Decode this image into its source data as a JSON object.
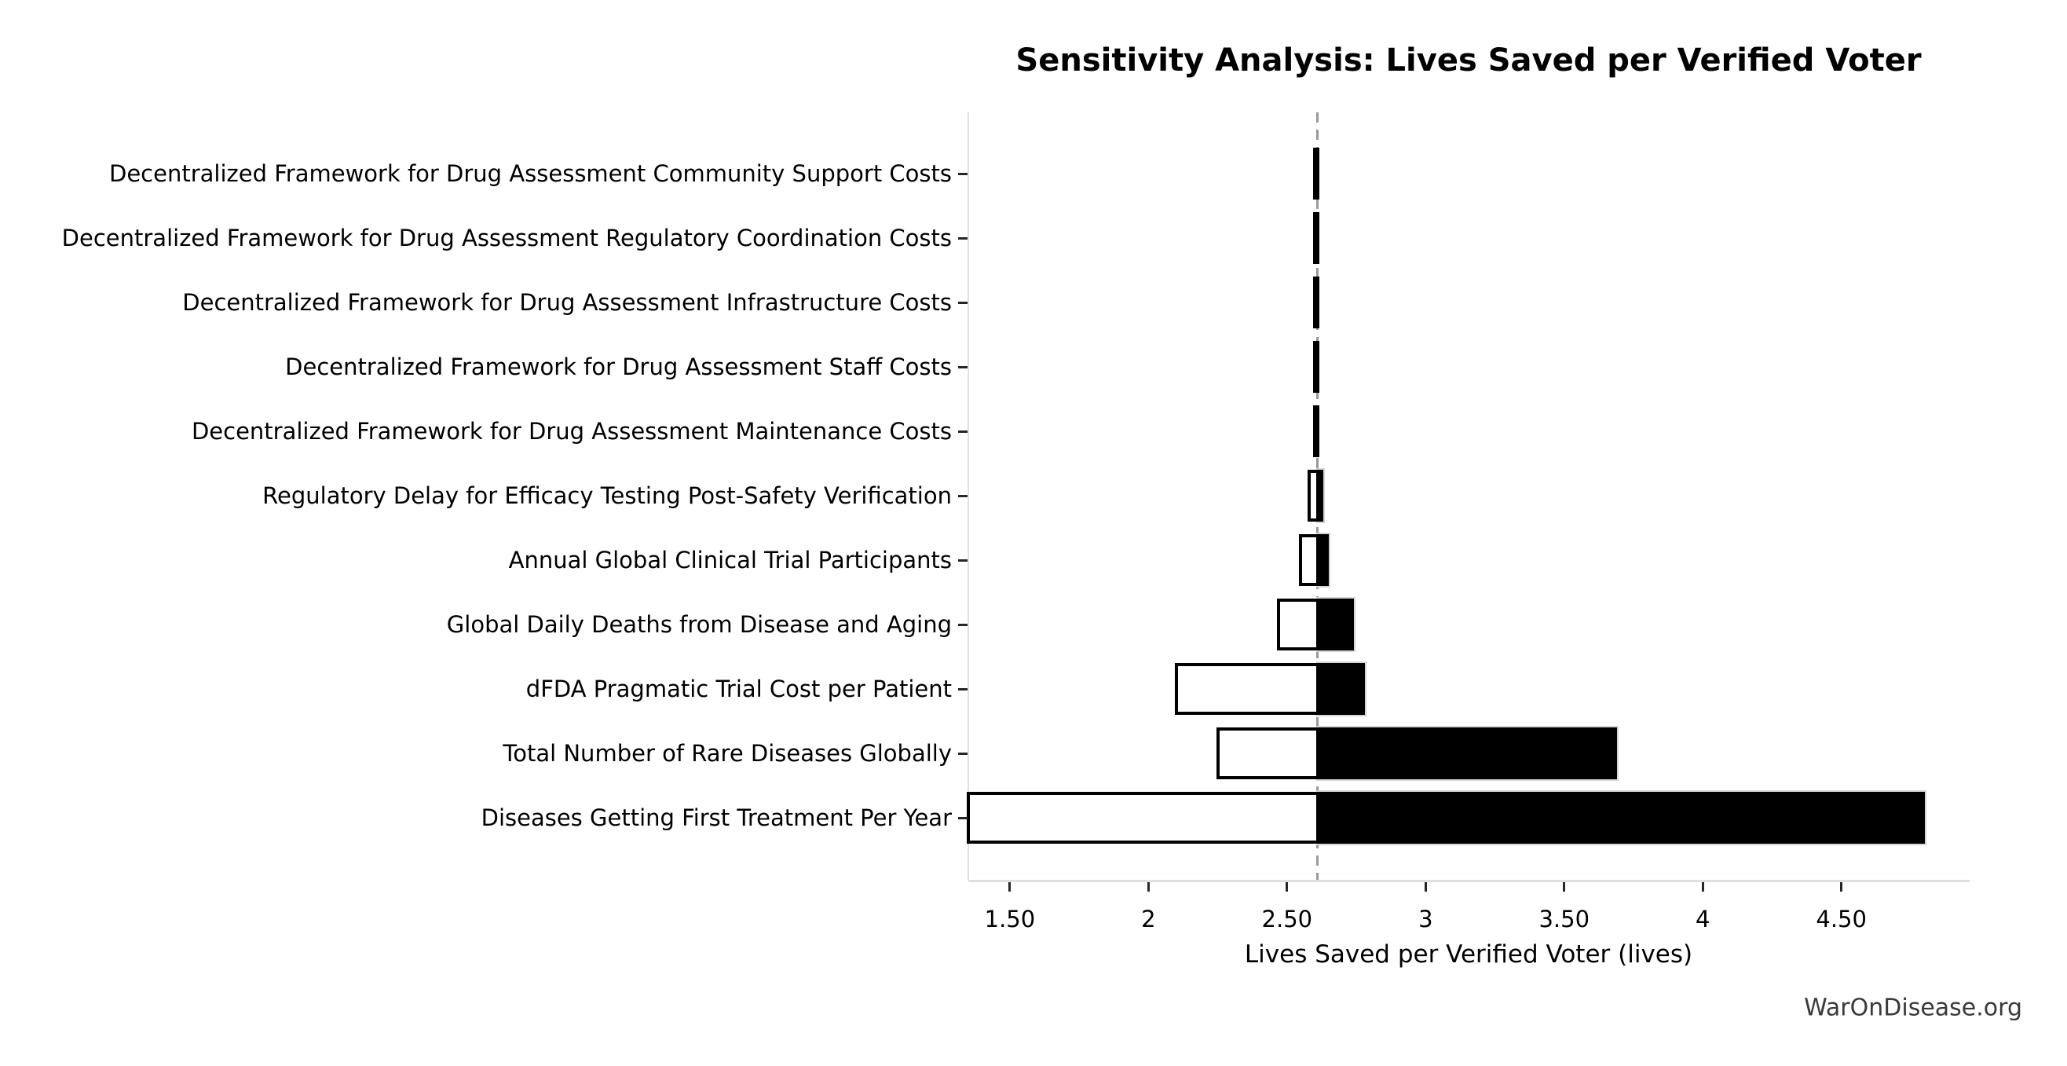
{
  "watermark": "WarOnDisease.org",
  "chart_data": {
    "type": "bar",
    "subtype": "tornado",
    "orientation": "horizontal",
    "title": "Sensitivity Analysis: Lives Saved per Verified Voter",
    "xlabel": "Lives Saved per Verified Voter (lives)",
    "baseline": 2.61,
    "xlim": [
      1.35,
      4.96
    ],
    "grid": false,
    "legend": "none",
    "xticks": [
      {
        "value": 1.5,
        "label": "1.50"
      },
      {
        "value": 2,
        "label": "2"
      },
      {
        "value": 2.5,
        "label": "2.50"
      },
      {
        "value": 3,
        "label": "3"
      },
      {
        "value": 3.5,
        "label": "3.50"
      },
      {
        "value": 4,
        "label": "4"
      },
      {
        "value": 4.5,
        "label": "4.50"
      }
    ],
    "categories": [
      "Decentralized Framework for Drug Assessment Community Support Costs",
      "Decentralized Framework for Drug Assessment Regulatory Coordination Costs",
      "Decentralized Framework for Drug Assessment Infrastructure Costs",
      "Decentralized Framework for Drug Assessment Staff Costs",
      "Decentralized Framework for Drug Assessment Maintenance Costs",
      "Regulatory Delay for Efficacy Testing Post-Safety Verification",
      "Annual Global Clinical Trial Participants",
      "Global Daily Deaths from Disease and Aging",
      "dFDA Pragmatic Trial Cost per Patient",
      "Total Number of Rare Diseases Globally",
      "Diseases Getting First Treatment Per Year"
    ],
    "series": [
      {
        "name": "low",
        "fill": "#ffffff",
        "edge": "#000000",
        "values": [
          2.6,
          2.6,
          2.6,
          2.6,
          2.6,
          2.58,
          2.55,
          2.47,
          2.1,
          2.25,
          1.35
        ]
      },
      {
        "name": "high",
        "fill": "#000000",
        "edge": "#d4d4d4",
        "values": [
          2.61,
          2.61,
          2.61,
          2.61,
          2.61,
          2.63,
          2.65,
          2.74,
          2.78,
          3.69,
          4.8
        ]
      }
    ],
    "baseline_color": "#999999",
    "spine_color": "#e0e0e0",
    "tick_color": "#262626",
    "text_color": "#000000",
    "watermark_color": "#3a3a3a"
  }
}
